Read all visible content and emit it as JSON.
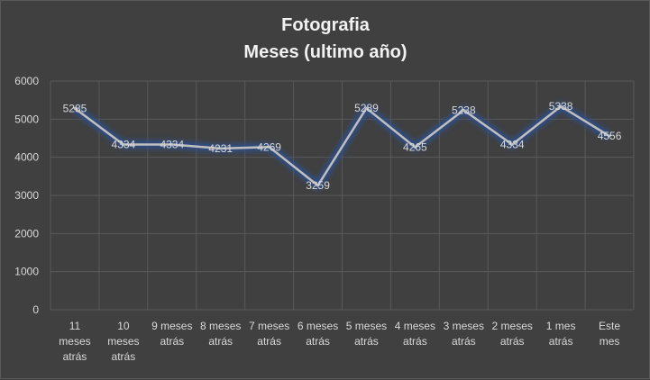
{
  "chart_data": {
    "type": "line",
    "title": "Fotografia",
    "subtitle": "Meses (ultimo año)",
    "categories": [
      [
        "11",
        "meses",
        "atrás"
      ],
      [
        "10",
        "meses",
        "atrás"
      ],
      [
        "9 meses",
        "atrás"
      ],
      [
        "8 meses",
        "atrás"
      ],
      [
        "7 meses",
        "atrás"
      ],
      [
        "6 meses",
        "atrás"
      ],
      [
        "5 meses",
        "atrás"
      ],
      [
        "4 meses",
        "atrás"
      ],
      [
        "3 meses",
        "atrás"
      ],
      [
        "2 meses",
        "atrás"
      ],
      [
        "1 mes",
        "atrás"
      ],
      [
        "Este",
        "mes"
      ]
    ],
    "series": [
      {
        "values": [
          5285,
          4334,
          4334,
          4231,
          4269,
          3259,
          5289,
          4265,
          5238,
          4334,
          5338,
          4556
        ]
      }
    ],
    "ylim": [
      0,
      6000
    ],
    "yticks": [
      0,
      1000,
      2000,
      3000,
      4000,
      5000,
      6000
    ],
    "grid": true,
    "legend": "none",
    "colors": {
      "background": "#404040",
      "line": "#bfbfbf",
      "glow": "#2f4f8f",
      "grid": "#595959",
      "text": "#d9d9d9",
      "title": "#f2f2f2"
    }
  }
}
